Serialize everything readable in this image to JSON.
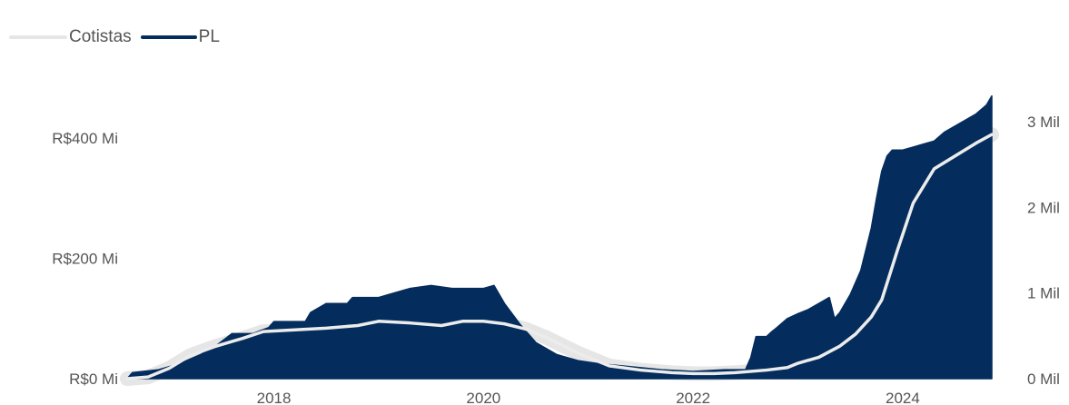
{
  "legend": [
    {
      "name": "Cotistas",
      "color": "#e6e6e6"
    },
    {
      "name": "PL",
      "color": "#042c5c"
    }
  ],
  "chart_data": {
    "type": "area",
    "title": "",
    "xlabel": "",
    "ylabel": "",
    "x_ticks": [
      2018,
      2020,
      2022,
      2024
    ],
    "xlim": [
      2016.6,
      2024.85
    ],
    "y_left": {
      "ticks": [
        "R$0 Mi",
        "R$200 Mi",
        "R$400 Mi"
      ],
      "tick_values": [
        0,
        200,
        400
      ],
      "lim": [
        0,
        400
      ],
      "unit": "R$ Mi"
    },
    "y_right": {
      "ticks": [
        "0 Mil",
        "1 Mil",
        "2 Mil",
        "3 Mil"
      ],
      "tick_values": [
        0,
        1,
        2,
        3
      ],
      "lim": [
        0,
        3
      ],
      "unit": "Mil"
    },
    "legend_position": "top-left",
    "grid": false,
    "series": [
      {
        "name": "PL",
        "axis": "left",
        "color": "#042c5c",
        "x": [
          2016.6,
          2016.65,
          2016.9,
          2017.1,
          2017.3,
          2017.45,
          2017.6,
          2017.7,
          2017.8,
          2017.95,
          2018.0,
          2018.3,
          2018.35,
          2018.5,
          2018.7,
          2018.75,
          2019.0,
          2019.1,
          2019.3,
          2019.5,
          2019.7,
          2019.8,
          2020.0,
          2020.1,
          2020.2,
          2020.35,
          2020.5,
          2020.7,
          2020.9,
          2021.1,
          2021.4,
          2021.7,
          2022.0,
          2022.3,
          2022.5,
          2022.55,
          2022.6,
          2022.7,
          2022.75,
          2022.8,
          2022.9,
          2023.0,
          2023.1,
          2023.2,
          2023.3,
          2023.35,
          2023.4,
          2023.5,
          2023.6,
          2023.7,
          2023.75,
          2023.8,
          2023.85,
          2023.9,
          2024.0,
          2024.1,
          2024.2,
          2024.3,
          2024.4,
          2024.5,
          2024.6,
          2024.7,
          2024.8,
          2024.85
        ],
        "values": [
          0,
          10,
          15,
          25,
          40,
          55,
          75,
          75,
          75,
          85,
          95,
          95,
          110,
          125,
          125,
          135,
          135,
          140,
          150,
          155,
          150,
          150,
          150,
          155,
          125,
          90,
          60,
          40,
          30,
          25,
          20,
          15,
          12,
          15,
          15,
          35,
          70,
          70,
          78,
          85,
          100,
          108,
          115,
          125,
          135,
          100,
          110,
          140,
          180,
          250,
          300,
          345,
          370,
          380,
          380,
          385,
          390,
          395,
          410,
          420,
          430,
          440,
          455,
          470
        ]
      },
      {
        "name": "Cotistas",
        "axis": "right",
        "color": "#e6e6e6",
        "x": [
          2016.6,
          2016.8,
          2017.0,
          2017.2,
          2017.45,
          2017.7,
          2017.9,
          2018.2,
          2018.5,
          2018.8,
          2019.0,
          2019.3,
          2019.6,
          2019.8,
          2020.0,
          2020.2,
          2020.4,
          2020.6,
          2020.9,
          2021.2,
          2021.5,
          2021.8,
          2022.0,
          2022.2,
          2022.4,
          2022.7,
          2022.9,
          2023.0,
          2023.2,
          2023.4,
          2023.55,
          2023.7,
          2023.8,
          2023.95,
          2024.1,
          2024.3,
          2024.5,
          2024.7,
          2024.85
        ],
        "values": [
          0,
          0.02,
          0.12,
          0.27,
          0.38,
          0.47,
          0.55,
          0.57,
          0.59,
          0.62,
          0.67,
          0.65,
          0.62,
          0.67,
          0.67,
          0.64,
          0.58,
          0.48,
          0.3,
          0.15,
          0.1,
          0.07,
          0.06,
          0.06,
          0.07,
          0.1,
          0.13,
          0.18,
          0.25,
          0.38,
          0.52,
          0.72,
          0.92,
          1.5,
          2.05,
          2.45,
          2.6,
          2.75,
          2.85
        ]
      }
    ]
  }
}
